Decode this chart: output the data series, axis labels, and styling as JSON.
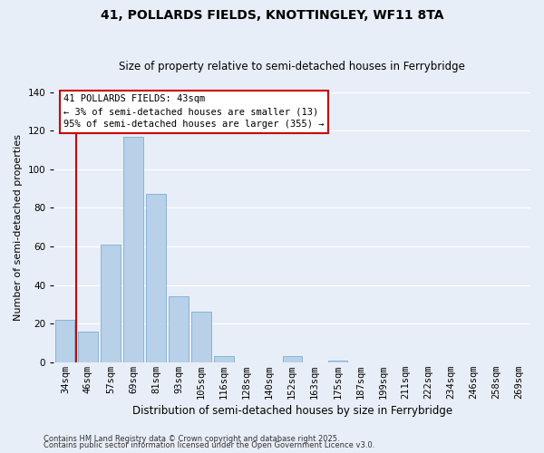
{
  "title": "41, POLLARDS FIELDS, KNOTTINGLEY, WF11 8TA",
  "subtitle": "Size of property relative to semi-detached houses in Ferrybridge",
  "xlabel": "Distribution of semi-detached houses by size in Ferrybridge",
  "ylabel": "Number of semi-detached properties",
  "bar_labels": [
    "34sqm",
    "46sqm",
    "57sqm",
    "69sqm",
    "81sqm",
    "93sqm",
    "105sqm",
    "116sqm",
    "128sqm",
    "140sqm",
    "152sqm",
    "163sqm",
    "175sqm",
    "187sqm",
    "199sqm",
    "211sqm",
    "222sqm",
    "234sqm",
    "246sqm",
    "258sqm",
    "269sqm"
  ],
  "bar_values": [
    22,
    16,
    61,
    117,
    87,
    34,
    26,
    3,
    0,
    0,
    3,
    0,
    1,
    0,
    0,
    0,
    0,
    0,
    0,
    0,
    0
  ],
  "bar_color": "#b8d0e8",
  "bar_edge_color": "#7aafd4",
  "ylim": [
    0,
    140
  ],
  "yticks": [
    0,
    20,
    40,
    60,
    80,
    100,
    120,
    140
  ],
  "annotation_title": "41 POLLARDS FIELDS: 43sqm",
  "annotation_line1": "← 3% of semi-detached houses are smaller (13)",
  "annotation_line2": "95% of semi-detached houses are larger (355) →",
  "annotation_box_facecolor": "#ffffff",
  "annotation_box_edgecolor": "#cc0000",
  "red_line_color": "#cc0000",
  "red_line_x": 0.47,
  "grid_color": "#ffffff",
  "footer1": "Contains HM Land Registry data © Crown copyright and database right 2025.",
  "footer2": "Contains public sector information licensed under the Open Government Licence v3.0.",
  "background_color": "#e8eef7",
  "title_fontsize": 10,
  "subtitle_fontsize": 8.5,
  "ylabel_fontsize": 8,
  "xlabel_fontsize": 8.5,
  "tick_fontsize": 7.5,
  "footer_fontsize": 6
}
